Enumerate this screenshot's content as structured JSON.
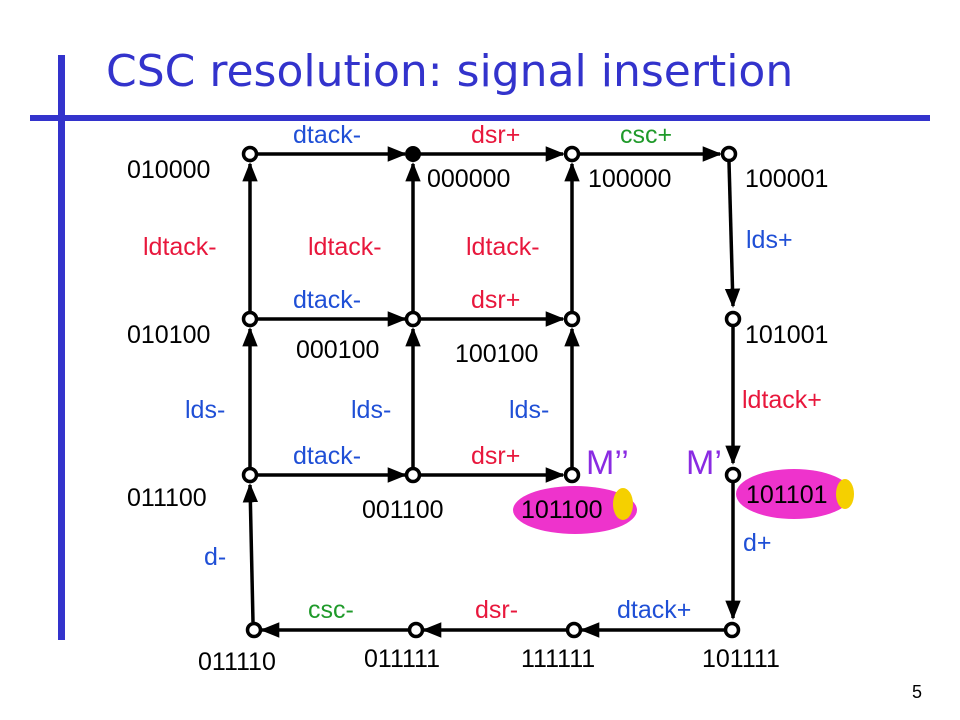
{
  "slide": {
    "title": "CSC resolution: signal insertion",
    "page_number": "5"
  },
  "codes": {
    "c010000": "010000",
    "c000000": "000000",
    "c100000": "100000",
    "c100001": "100001",
    "c010100": "010100",
    "c000100": "000100",
    "c100100": "100100",
    "c101001": "101001",
    "c011100": "011100",
    "c001100": "001100",
    "c101100": "101100",
    "c101101": "101101",
    "c011110": "011110",
    "c011111": "011111",
    "c111111": "111111",
    "c101111": "101111"
  },
  "labels": {
    "dtack_minus": "dtack-",
    "dsr_plus": "dsr+",
    "csc_plus": "csc+",
    "ldtack_minus": "ldtack-",
    "lds_plus": "lds+",
    "ldtack_plus": "ldtack+",
    "lds_minus": "lds-",
    "d_minus": "d-",
    "d_plus": "d+",
    "csc_minus": "csc-",
    "dsr_minus": "dsr-",
    "dtack_plus": "dtack+"
  },
  "markers": {
    "m_double_prime": "M’’",
    "m_prime": "M’"
  },
  "colors": {
    "title": "#3333cc",
    "bar": "#3333cc",
    "red_label": "#e8173c",
    "blue_label": "#1f4fd6",
    "green_label": "#1f9a2a",
    "highlight": "#ee33cc",
    "bit_highlight": "#f5d000",
    "marker": "#8a2be2"
  }
}
